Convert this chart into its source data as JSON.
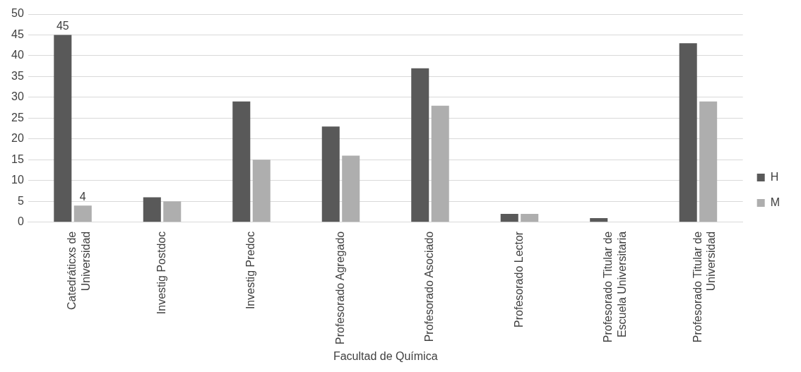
{
  "chart_data": {
    "type": "bar",
    "xlabel": "Facultad de Química",
    "categories": [
      "Catedráticxs de Universidad",
      "Investig Postdoc",
      "Investig Predoc",
      "Profesorado Agregado",
      "Profesorado Asociado",
      "Profesorado Lector",
      "Profesorado Titular de Escuela Universitaria",
      "Profesorado Titular de Universidad"
    ],
    "series": [
      {
        "name": "H",
        "color": "#595959",
        "values": [
          45,
          6,
          29,
          23,
          37,
          2,
          1,
          43
        ],
        "value_labels": [
          "45",
          null,
          null,
          null,
          null,
          null,
          null,
          null
        ]
      },
      {
        "name": "M",
        "color": "#aeaeae",
        "values": [
          4,
          5,
          15,
          16,
          28,
          2,
          0,
          29
        ],
        "value_labels": [
          "4",
          null,
          null,
          null,
          null,
          null,
          null,
          null
        ]
      }
    ],
    "ylim": [
      0,
      50
    ],
    "yticks": [
      0,
      5,
      10,
      15,
      20,
      25,
      30,
      35,
      40,
      45,
      50
    ],
    "grid": "y",
    "legend": "right"
  }
}
